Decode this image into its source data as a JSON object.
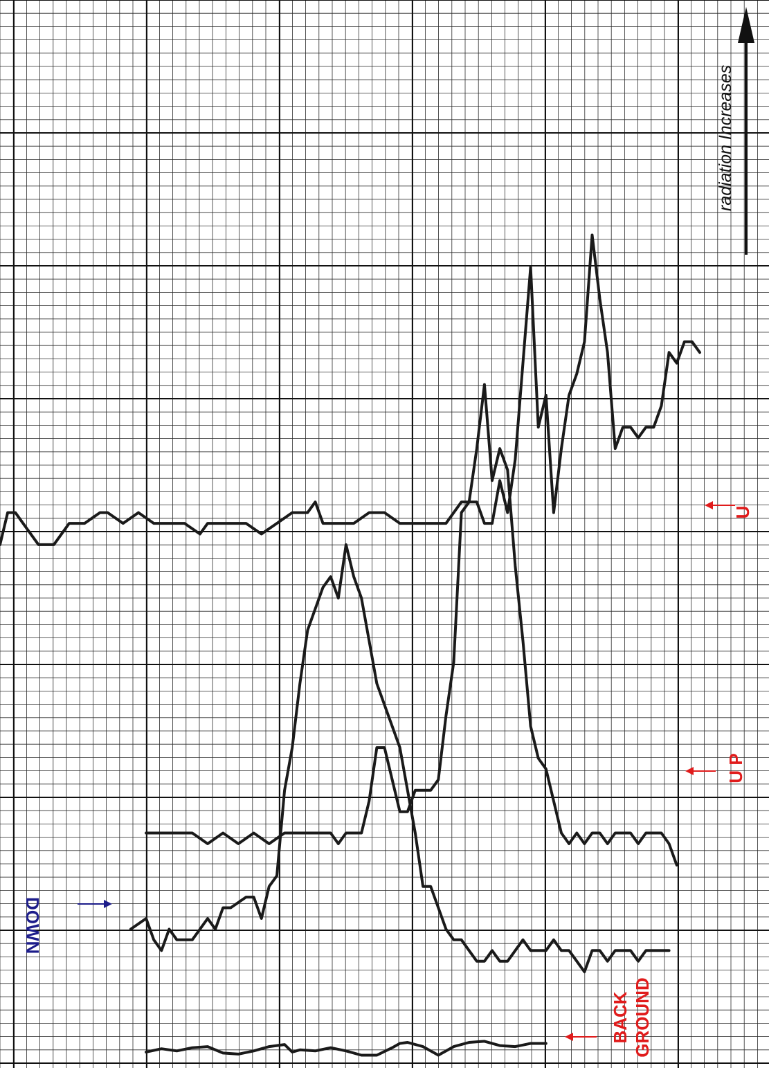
{
  "chart_data": {
    "type": "line",
    "title": "",
    "xlabel": "",
    "ylabel": "",
    "grid": true,
    "xlim": [
      0,
      100
    ],
    "ylim": [
      0,
      100
    ],
    "annotation_axis": "radiation Increases",
    "series": [
      {
        "name": "U",
        "label": "U",
        "color": "#e01b1b",
        "x": [
          0,
          1,
          2,
          3,
          5,
          7,
          9,
          11,
          13,
          14,
          16,
          18,
          20,
          22,
          24,
          26,
          27,
          28,
          30,
          32,
          34,
          36,
          38,
          40,
          41,
          42,
          44,
          46,
          48,
          50,
          52,
          54,
          56,
          58,
          60,
          61,
          62,
          63,
          64,
          65,
          66,
          67,
          68,
          69,
          70,
          71,
          72,
          73,
          74,
          75,
          76,
          77,
          78,
          79,
          80,
          81,
          82,
          83,
          84,
          85,
          86,
          87,
          88,
          89,
          90,
          91
        ],
        "y": [
          49,
          52,
          52,
          51,
          49,
          49,
          51,
          51,
          52,
          52,
          51,
          52,
          51,
          51,
          51,
          50,
          51,
          51,
          51,
          51,
          50,
          51,
          52,
          52,
          53,
          51,
          51,
          51,
          52,
          52,
          51,
          51,
          51,
          51,
          53,
          53,
          53,
          51,
          51,
          55,
          52,
          57,
          66,
          75,
          60,
          63,
          52,
          58,
          63,
          65,
          68,
          78,
          72,
          67,
          58,
          60,
          60,
          59,
          60,
          60,
          62,
          67,
          66,
          68,
          68,
          67
        ]
      },
      {
        "name": "UP",
        "label": "U P",
        "color": "#e01b1b",
        "x": [
          19,
          21,
          23,
          25,
          27,
          29,
          31,
          33,
          35,
          37,
          39,
          41,
          43,
          44,
          45,
          46,
          47,
          48,
          49,
          50,
          51,
          52,
          53,
          54,
          55,
          56,
          57,
          58,
          59,
          60,
          61,
          62,
          63,
          64,
          65,
          66,
          67,
          68,
          69,
          70,
          71,
          72,
          73,
          74,
          75,
          76,
          77,
          78,
          79,
          80,
          81,
          82,
          83,
          84,
          85,
          86,
          87,
          88
        ],
        "y": [
          22,
          22,
          22,
          22,
          21,
          22,
          21,
          22,
          21,
          22,
          22,
          22,
          22,
          21,
          22,
          22,
          22,
          25,
          30,
          30,
          27,
          24,
          24,
          26,
          26,
          26,
          27,
          33,
          38,
          52,
          53,
          58,
          64,
          55,
          58,
          56,
          47,
          40,
          32,
          29,
          28,
          25,
          22,
          21,
          22,
          21,
          22,
          22,
          21,
          22,
          22,
          22,
          21,
          22,
          22,
          22,
          21,
          19
        ]
      },
      {
        "name": "DOWN",
        "label": "DOWN",
        "color": "#1c1c8a",
        "x": [
          17,
          19,
          20,
          21,
          22,
          23,
          25,
          27,
          28,
          29,
          30,
          32,
          33,
          34,
          35,
          36,
          37,
          38,
          39,
          40,
          41,
          42,
          43,
          44,
          45,
          46,
          47,
          48,
          49,
          50,
          51,
          52,
          53,
          54,
          55,
          56,
          57,
          58,
          59,
          60,
          61,
          62,
          63,
          64,
          65,
          66,
          67,
          68,
          69,
          70,
          71,
          72,
          73,
          74,
          75,
          76,
          77,
          78,
          79,
          80,
          81,
          82,
          83,
          84,
          85,
          86,
          87
        ],
        "y": [
          13,
          14,
          12,
          11,
          13,
          12,
          12,
          14,
          13,
          15,
          15,
          16,
          16,
          14,
          17,
          18,
          26,
          30,
          36,
          41,
          43,
          45,
          46,
          44,
          49,
          46,
          44,
          40,
          36,
          34,
          32,
          30,
          26,
          22,
          17,
          17,
          15,
          13,
          12,
          12,
          11,
          10,
          10,
          11,
          10,
          10,
          11,
          12,
          11,
          11,
          11,
          12,
          11,
          11,
          10,
          9,
          11,
          11,
          10,
          11,
          11,
          11,
          10,
          11,
          11,
          11,
          11
        ]
      },
      {
        "name": "BACKGROUND",
        "label": "BACK GROUND",
        "color": "#e01b1b",
        "x": [
          19,
          21,
          23,
          25,
          27,
          29,
          31,
          33,
          35,
          37,
          38,
          39,
          41,
          43,
          45,
          47,
          49,
          51,
          52,
          53,
          55,
          57,
          59,
          61,
          63,
          65,
          67,
          69,
          71
        ],
        "y": [
          1.5,
          1.8,
          1.6,
          1.9,
          2.0,
          1.4,
          1.3,
          1.6,
          2.0,
          2.2,
          1.5,
          1.7,
          1.6,
          1.9,
          1.6,
          1.2,
          1.2,
          1.9,
          2.3,
          2.4,
          2.0,
          1.2,
          2.0,
          2.4,
          2.5,
          2.1,
          2.0,
          2.3,
          2.3
        ]
      }
    ]
  }
}
